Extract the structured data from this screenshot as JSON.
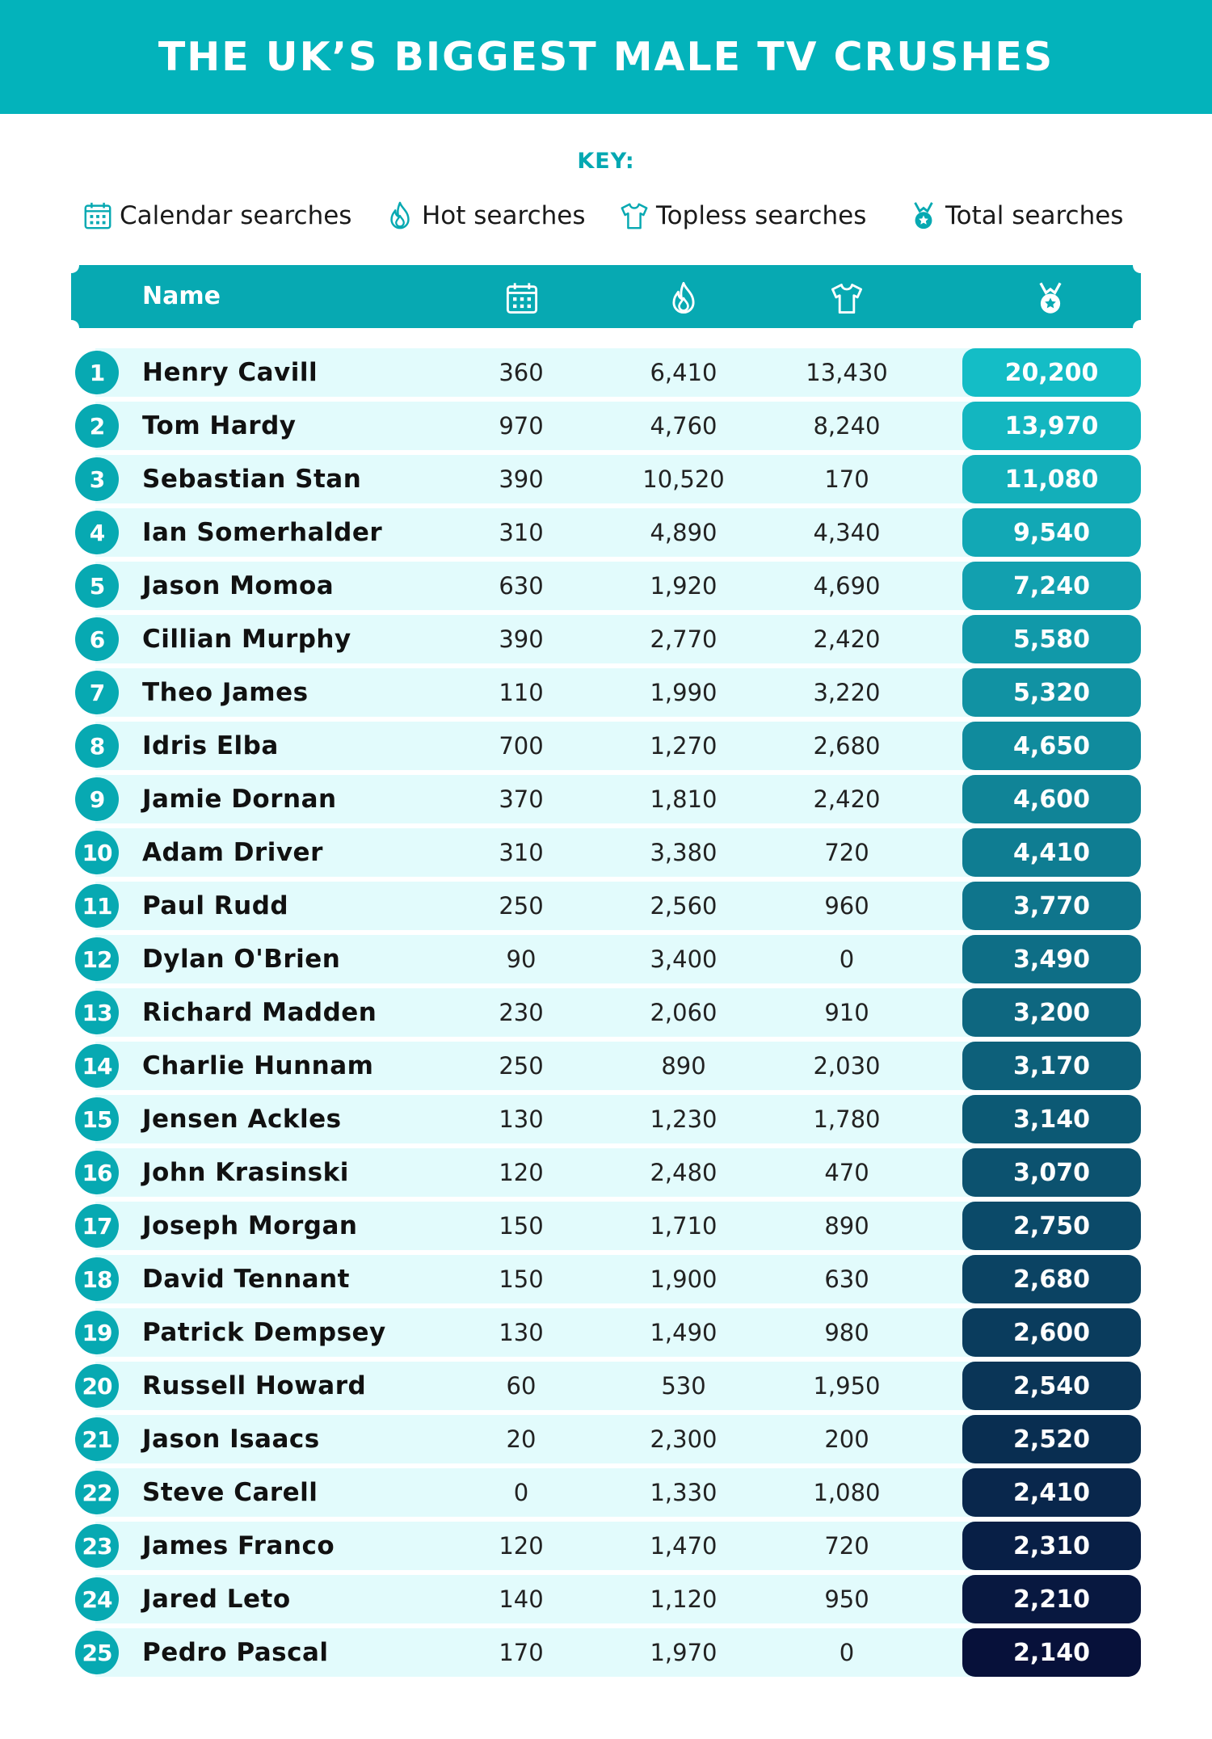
{
  "title": "THE UK’S BIGGEST MALE TV CRUSHES",
  "key": {
    "title": "KEY:",
    "items": [
      {
        "icon": "calendar-icon",
        "label": "Calendar searches"
      },
      {
        "icon": "flame-icon",
        "label": "Hot searches"
      },
      {
        "icon": "tshirt-icon",
        "label": "Topless searches"
      },
      {
        "icon": "medal-icon",
        "label": "Total searches"
      }
    ]
  },
  "colors": {
    "banner": "#03b3bb",
    "accent": "#07a9b2",
    "row_background": "#e2fbfc",
    "total_first": "#14bdc6",
    "total_last": "#07113a"
  },
  "chart_data": {
    "type": "table",
    "title": "THE UK’S BIGGEST MALE TV CRUSHES",
    "columns": [
      "Name",
      "Calendar searches",
      "Hot searches",
      "Topless searches",
      "Total searches"
    ],
    "header": {
      "name": "Name",
      "icons": [
        "calendar-icon",
        "flame-icon",
        "tshirt-icon",
        "medal-icon"
      ]
    },
    "rows": [
      {
        "rank": "1",
        "name": "Henry Cavill",
        "calendar": "360",
        "hot": "6,410",
        "topless": "13,430",
        "total": "20,200"
      },
      {
        "rank": "2",
        "name": "Tom Hardy",
        "calendar": "970",
        "hot": "4,760",
        "topless": "8,240",
        "total": "13,970"
      },
      {
        "rank": "3",
        "name": "Sebastian Stan",
        "calendar": "390",
        "hot": "10,520",
        "topless": "170",
        "total": "11,080"
      },
      {
        "rank": "4",
        "name": "Ian Somerhalder",
        "calendar": "310",
        "hot": "4,890",
        "topless": "4,340",
        "total": "9,540"
      },
      {
        "rank": "5",
        "name": "Jason Momoa",
        "calendar": "630",
        "hot": "1,920",
        "topless": "4,690",
        "total": "7,240"
      },
      {
        "rank": "6",
        "name": "Cillian Murphy",
        "calendar": "390",
        "hot": "2,770",
        "topless": "2,420",
        "total": "5,580"
      },
      {
        "rank": "7",
        "name": "Theo James",
        "calendar": "110",
        "hot": "1,990",
        "topless": "3,220",
        "total": "5,320"
      },
      {
        "rank": "8",
        "name": "Idris Elba",
        "calendar": "700",
        "hot": "1,270",
        "topless": "2,680",
        "total": "4,650"
      },
      {
        "rank": "9",
        "name": "Jamie Dornan",
        "calendar": "370",
        "hot": "1,810",
        "topless": "2,420",
        "total": "4,600"
      },
      {
        "rank": "10",
        "name": "Adam Driver",
        "calendar": "310",
        "hot": "3,380",
        "topless": "720",
        "total": "4,410"
      },
      {
        "rank": "11",
        "name": "Paul Rudd",
        "calendar": "250",
        "hot": "2,560",
        "topless": "960",
        "total": "3,770"
      },
      {
        "rank": "12",
        "name": "Dylan O'Brien",
        "calendar": "90",
        "hot": "3,400",
        "topless": "0",
        "total": "3,490"
      },
      {
        "rank": "13",
        "name": "Richard Madden",
        "calendar": "230",
        "hot": "2,060",
        "topless": "910",
        "total": "3,200"
      },
      {
        "rank": "14",
        "name": "Charlie Hunnam",
        "calendar": "250",
        "hot": "890",
        "topless": "2,030",
        "total": "3,170"
      },
      {
        "rank": "15",
        "name": "Jensen Ackles",
        "calendar": "130",
        "hot": "1,230",
        "topless": "1,780",
        "total": "3,140"
      },
      {
        "rank": "16",
        "name": "John Krasinski",
        "calendar": "120",
        "hot": "2,480",
        "topless": "470",
        "total": "3,070"
      },
      {
        "rank": "17",
        "name": "Joseph Morgan",
        "calendar": "150",
        "hot": "1,710",
        "topless": "890",
        "total": "2,750"
      },
      {
        "rank": "18",
        "name": "David Tennant",
        "calendar": "150",
        "hot": "1,900",
        "topless": "630",
        "total": "2,680"
      },
      {
        "rank": "19",
        "name": "Patrick Dempsey",
        "calendar": "130",
        "hot": "1,490",
        "topless": "980",
        "total": "2,600"
      },
      {
        "rank": "20",
        "name": "Russell Howard",
        "calendar": "60",
        "hot": "530",
        "topless": "1,950",
        "total": "2,540"
      },
      {
        "rank": "21",
        "name": "Jason Isaacs",
        "calendar": "20",
        "hot": "2,300",
        "topless": "200",
        "total": "2,520"
      },
      {
        "rank": "22",
        "name": "Steve Carell",
        "calendar": "0",
        "hot": "1,330",
        "topless": "1,080",
        "total": "2,410"
      },
      {
        "rank": "23",
        "name": "James Franco",
        "calendar": "120",
        "hot": "1,470",
        "topless": "720",
        "total": "2,310"
      },
      {
        "rank": "24",
        "name": "Jared Leto",
        "calendar": "140",
        "hot": "1,120",
        "topless": "950",
        "total": "2,210"
      },
      {
        "rank": "25",
        "name": "Pedro Pascal",
        "calendar": "170",
        "hot": "1,970",
        "topless": "0",
        "total": "2,140"
      }
    ]
  }
}
